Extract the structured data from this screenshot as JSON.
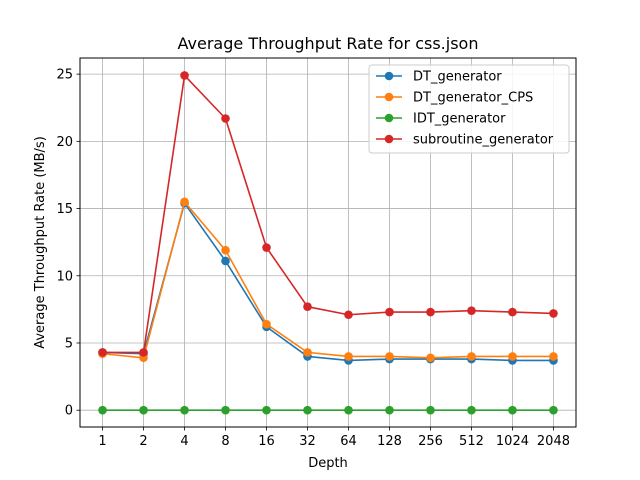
{
  "chart_data": {
    "type": "line",
    "title": "Average Throughput Rate for css.json",
    "xlabel": "Depth",
    "ylabel": "Average Throughput Rate (MB/s)",
    "categories": [
      "1",
      "2",
      "4",
      "8",
      "16",
      "32",
      "64",
      "128",
      "256",
      "512",
      "1024",
      "2048"
    ],
    "yticks": [
      0,
      5,
      10,
      15,
      20,
      25
    ],
    "ylim": [
      -1.25,
      26.2
    ],
    "grid": true,
    "legend_position": "top-right",
    "series": [
      {
        "name": "DT_generator",
        "color": "#1f77b4",
        "values": [
          4.3,
          4.2,
          15.4,
          11.1,
          6.2,
          4.0,
          3.7,
          3.8,
          3.8,
          3.8,
          3.7,
          3.7
        ]
      },
      {
        "name": "DT_generator_CPS",
        "color": "#ff7f0e",
        "values": [
          4.2,
          3.9,
          15.5,
          11.9,
          6.4,
          4.3,
          4.0,
          4.0,
          3.9,
          4.0,
          4.0,
          4.0
        ]
      },
      {
        "name": "IDT_generator",
        "color": "#2ca02c",
        "values": [
          0.0,
          0.0,
          0.0,
          0.0,
          0.0,
          0.0,
          0.0,
          0.0,
          0.0,
          0.0,
          0.0,
          0.0
        ]
      },
      {
        "name": "subroutine_generator",
        "color": "#d62728",
        "values": [
          4.3,
          4.3,
          24.9,
          21.7,
          12.1,
          7.7,
          7.1,
          7.3,
          7.3,
          7.4,
          7.3,
          7.2
        ]
      }
    ]
  }
}
